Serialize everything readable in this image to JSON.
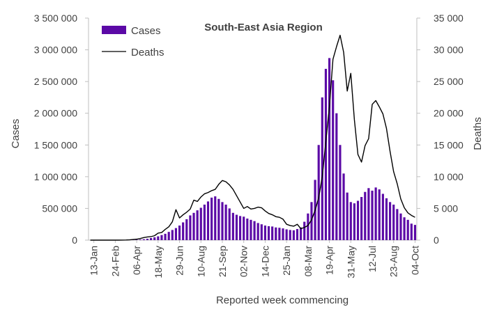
{
  "chart_data": {
    "type": "bar+line",
    "title": "South-East Asia Region",
    "xlabel": "Reported week commencing",
    "ylabel_left": "Cases",
    "ylabel_right": "Deaths",
    "ylim_left": [
      0,
      3500000
    ],
    "ylim_right": [
      0,
      35000
    ],
    "y_ticks_left": [
      "0",
      "500 000",
      "1 000 000",
      "1 500 000",
      "2 000 000",
      "2 500 000",
      "3 000 000",
      "3 500 000"
    ],
    "y_ticks_right": [
      "0",
      "5 000",
      "10 000",
      "15 000",
      "20 000",
      "25 000",
      "30 000",
      "35 000"
    ],
    "x_tick_labels": [
      "13-Jan",
      "24-Feb",
      "06-Apr",
      "18-May",
      "29-Jun",
      "10-Aug",
      "21-Sep",
      "02-Nov",
      "14-Dec",
      "25-Jan",
      "08-Mar",
      "19-Apr",
      "31-May",
      "12-Jul",
      "23-Aug",
      "04-Oct"
    ],
    "x_tick_week_index": [
      1,
      7,
      13,
      19,
      25,
      31,
      37,
      43,
      49,
      55,
      61,
      67,
      73,
      79,
      85,
      91
    ],
    "legend": {
      "position": "top-left"
    },
    "grid": false,
    "colors": {
      "cases": "#5b09a6",
      "deaths": "#000000",
      "axis": "#bfbfbf",
      "text": "#404040"
    },
    "series": [
      {
        "name": "Cases",
        "kind": "bar",
        "axis": "left",
        "values": [
          0,
          0,
          0,
          0,
          0,
          0,
          0,
          0,
          0,
          500,
          1000,
          2000,
          4000,
          6000,
          9000,
          14000,
          22000,
          33000,
          45000,
          60000,
          80000,
          100000,
          130000,
          160000,
          190000,
          230000,
          280000,
          330000,
          390000,
          430000,
          470000,
          510000,
          560000,
          610000,
          670000,
          690000,
          650000,
          600000,
          560000,
          500000,
          430000,
          400000,
          380000,
          370000,
          340000,
          320000,
          300000,
          270000,
          250000,
          230000,
          220000,
          215000,
          200000,
          195000,
          185000,
          170000,
          160000,
          155000,
          175000,
          200000,
          290000,
          420000,
          600000,
          950000,
          1500000,
          2250000,
          2700000,
          2870000,
          2520000,
          2000000,
          1500000,
          1050000,
          750000,
          600000,
          580000,
          620000,
          680000,
          760000,
          820000,
          780000,
          830000,
          800000,
          730000,
          660000,
          600000,
          560000,
          490000,
          420000,
          360000,
          320000,
          260000,
          240000
        ]
      },
      {
        "name": "Deaths",
        "kind": "line",
        "axis": "right",
        "values": [
          0,
          0,
          0,
          0,
          0,
          0,
          0,
          0,
          0,
          10,
          20,
          50,
          100,
          150,
          250,
          400,
          500,
          550,
          700,
          1100,
          1200,
          1700,
          2100,
          2900,
          4800,
          3500,
          4000,
          4400,
          4900,
          6300,
          6100,
          6800,
          7300,
          7500,
          7800,
          8000,
          8800,
          9400,
          9200,
          8700,
          8000,
          7000,
          6000,
          5000,
          5300,
          4900,
          5000,
          5200,
          5100,
          4600,
          4200,
          4000,
          3700,
          3600,
          3300,
          2500,
          2300,
          2200,
          2500,
          1800,
          2000,
          2300,
          3200,
          4700,
          6700,
          10000,
          15500,
          21000,
          28500,
          30500,
          32300,
          29600,
          23500,
          26300,
          19000,
          13500,
          12300,
          14900,
          16000,
          21400,
          22000,
          21000,
          19900,
          17600,
          14000,
          10800,
          8900,
          6500,
          5100,
          4300,
          3900,
          3600
        ]
      }
    ]
  }
}
